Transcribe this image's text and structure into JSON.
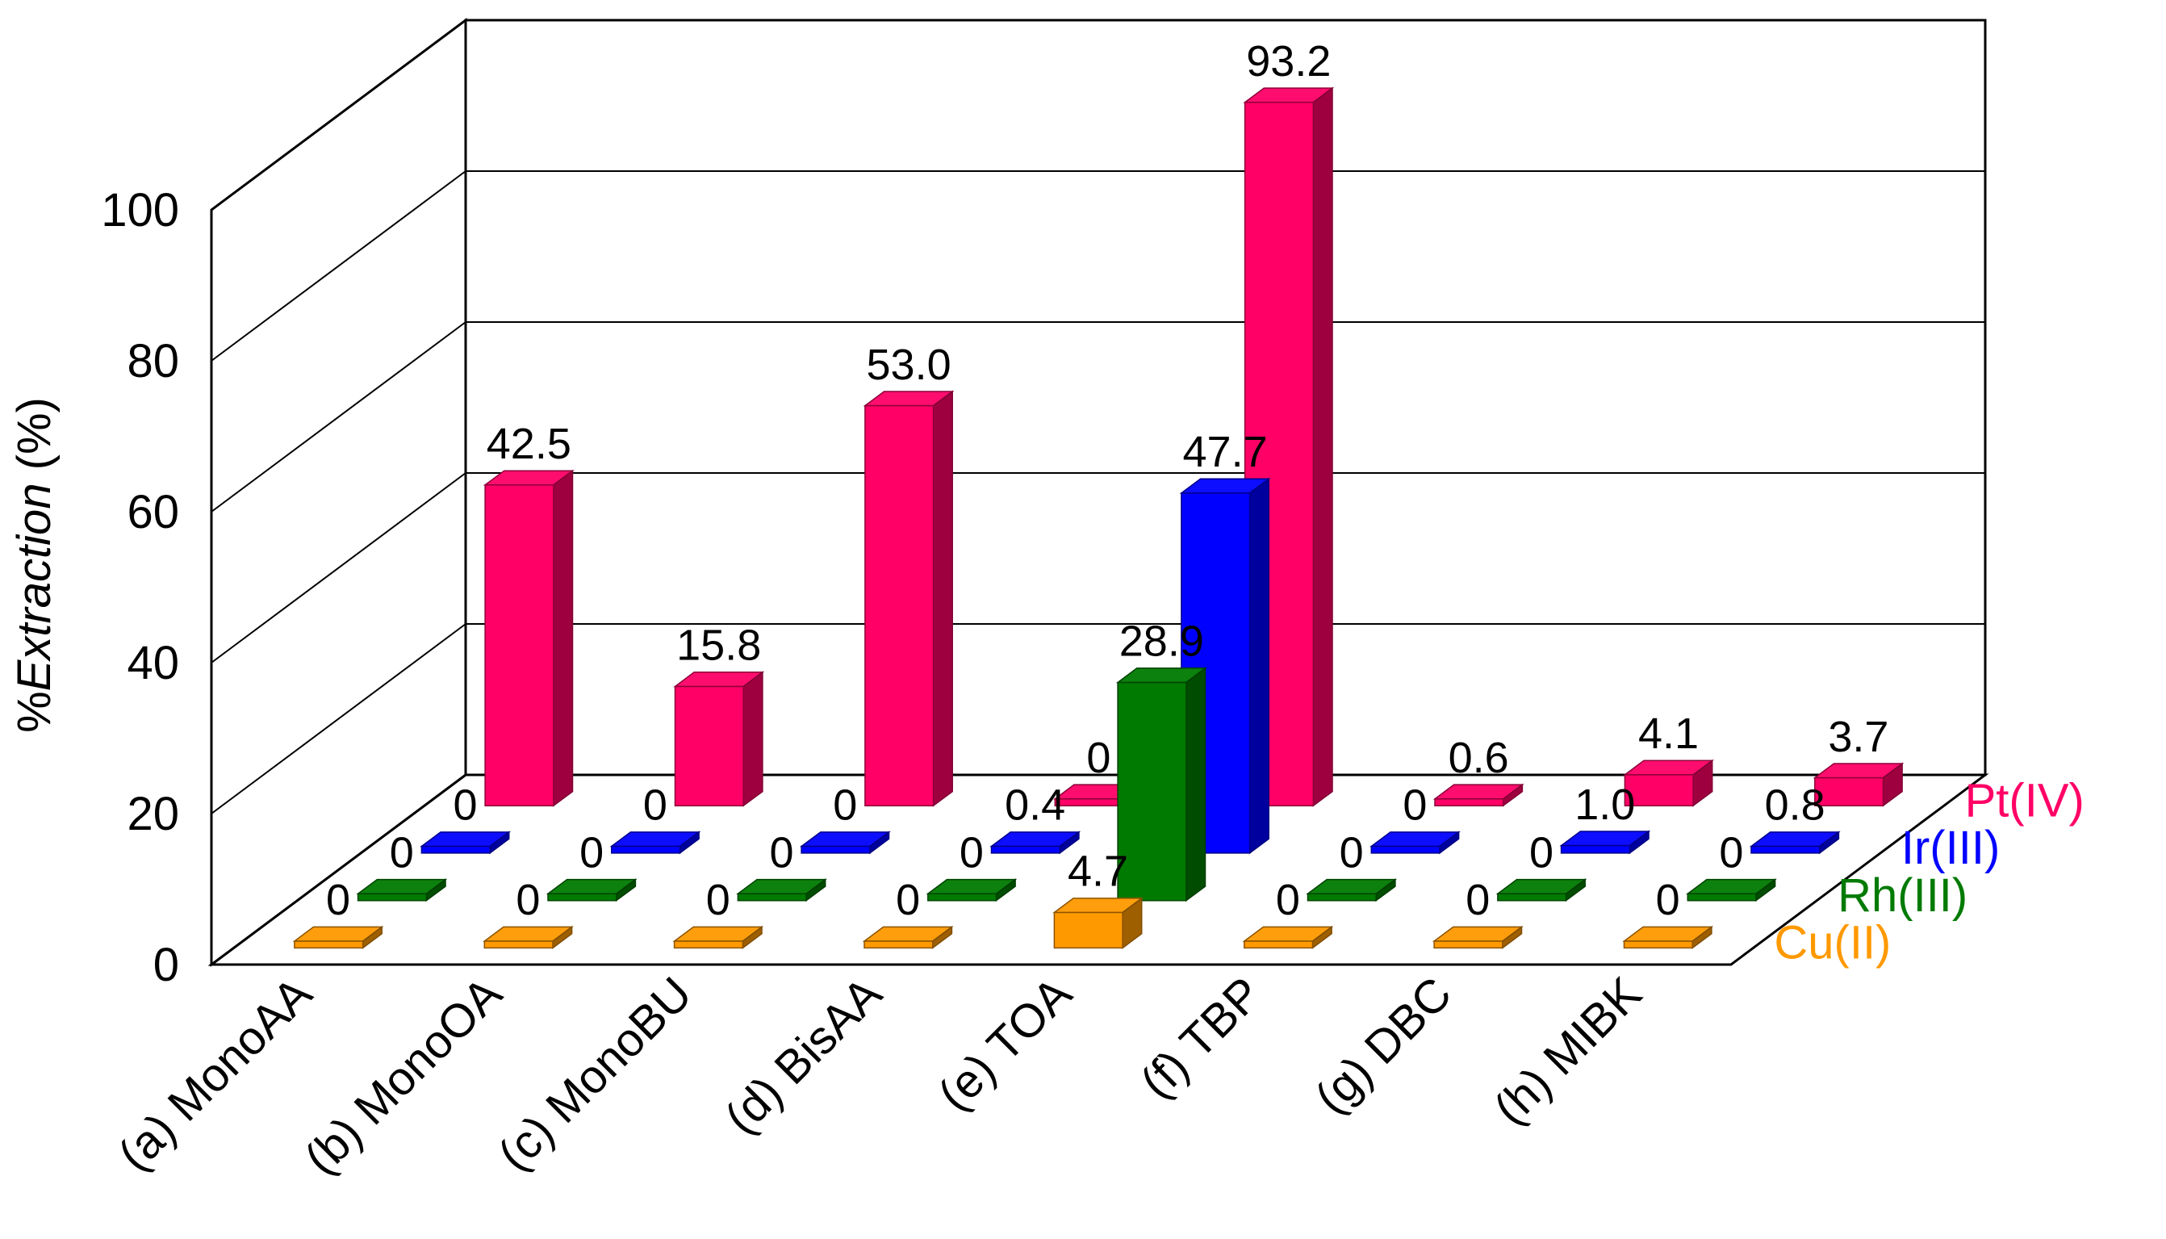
{
  "chart_data": {
    "type": "bar",
    "title": "",
    "ylabel_prefix": "%",
    "ylabel_italic": "Extraction",
    "ylabel_suffix": " (%)",
    "ylim": [
      0,
      100
    ],
    "yticks": [
      "0",
      "20",
      "40",
      "60",
      "80",
      "100"
    ],
    "grid": true,
    "legend_position": "right",
    "categories": [
      "(a) MonoAA",
      "(b) MonoOA",
      "(c) MonoBU",
      "(d) BisAA",
      "(e) TOA",
      "(f) TBP",
      "(g) DBC",
      "(h) MIBK"
    ],
    "series": [
      {
        "name": "Cu(II)",
        "color": "#FF9900",
        "values": [
          0,
          0,
          0,
          0,
          4.7,
          0,
          0,
          0
        ],
        "labels": [
          "0",
          "0",
          "0",
          "0",
          "4.7",
          "0",
          "0",
          "0"
        ]
      },
      {
        "name": "Rh(III)",
        "color": "#007A00",
        "values": [
          0,
          0,
          0,
          0,
          28.9,
          0,
          0,
          0
        ],
        "labels": [
          "0",
          "0",
          "0",
          "0",
          "28.9",
          "0",
          "0",
          "0"
        ]
      },
      {
        "name": "Ir(III)",
        "color": "#0000FF",
        "values": [
          0,
          0,
          0,
          0.4,
          47.7,
          0,
          1.0,
          0.8
        ],
        "labels": [
          "0",
          "0",
          "0",
          "0.4",
          "47.7",
          "0",
          "1.0",
          "0.8"
        ]
      },
      {
        "name": "Pt(IV)",
        "color": "#FF0066",
        "values": [
          42.5,
          15.8,
          53.0,
          0,
          93.2,
          0.6,
          4.1,
          3.7
        ],
        "labels": [
          "42.5",
          "15.8",
          "53.0",
          "0",
          "93.2",
          "0.6",
          "4.1",
          "3.7"
        ]
      }
    ]
  }
}
